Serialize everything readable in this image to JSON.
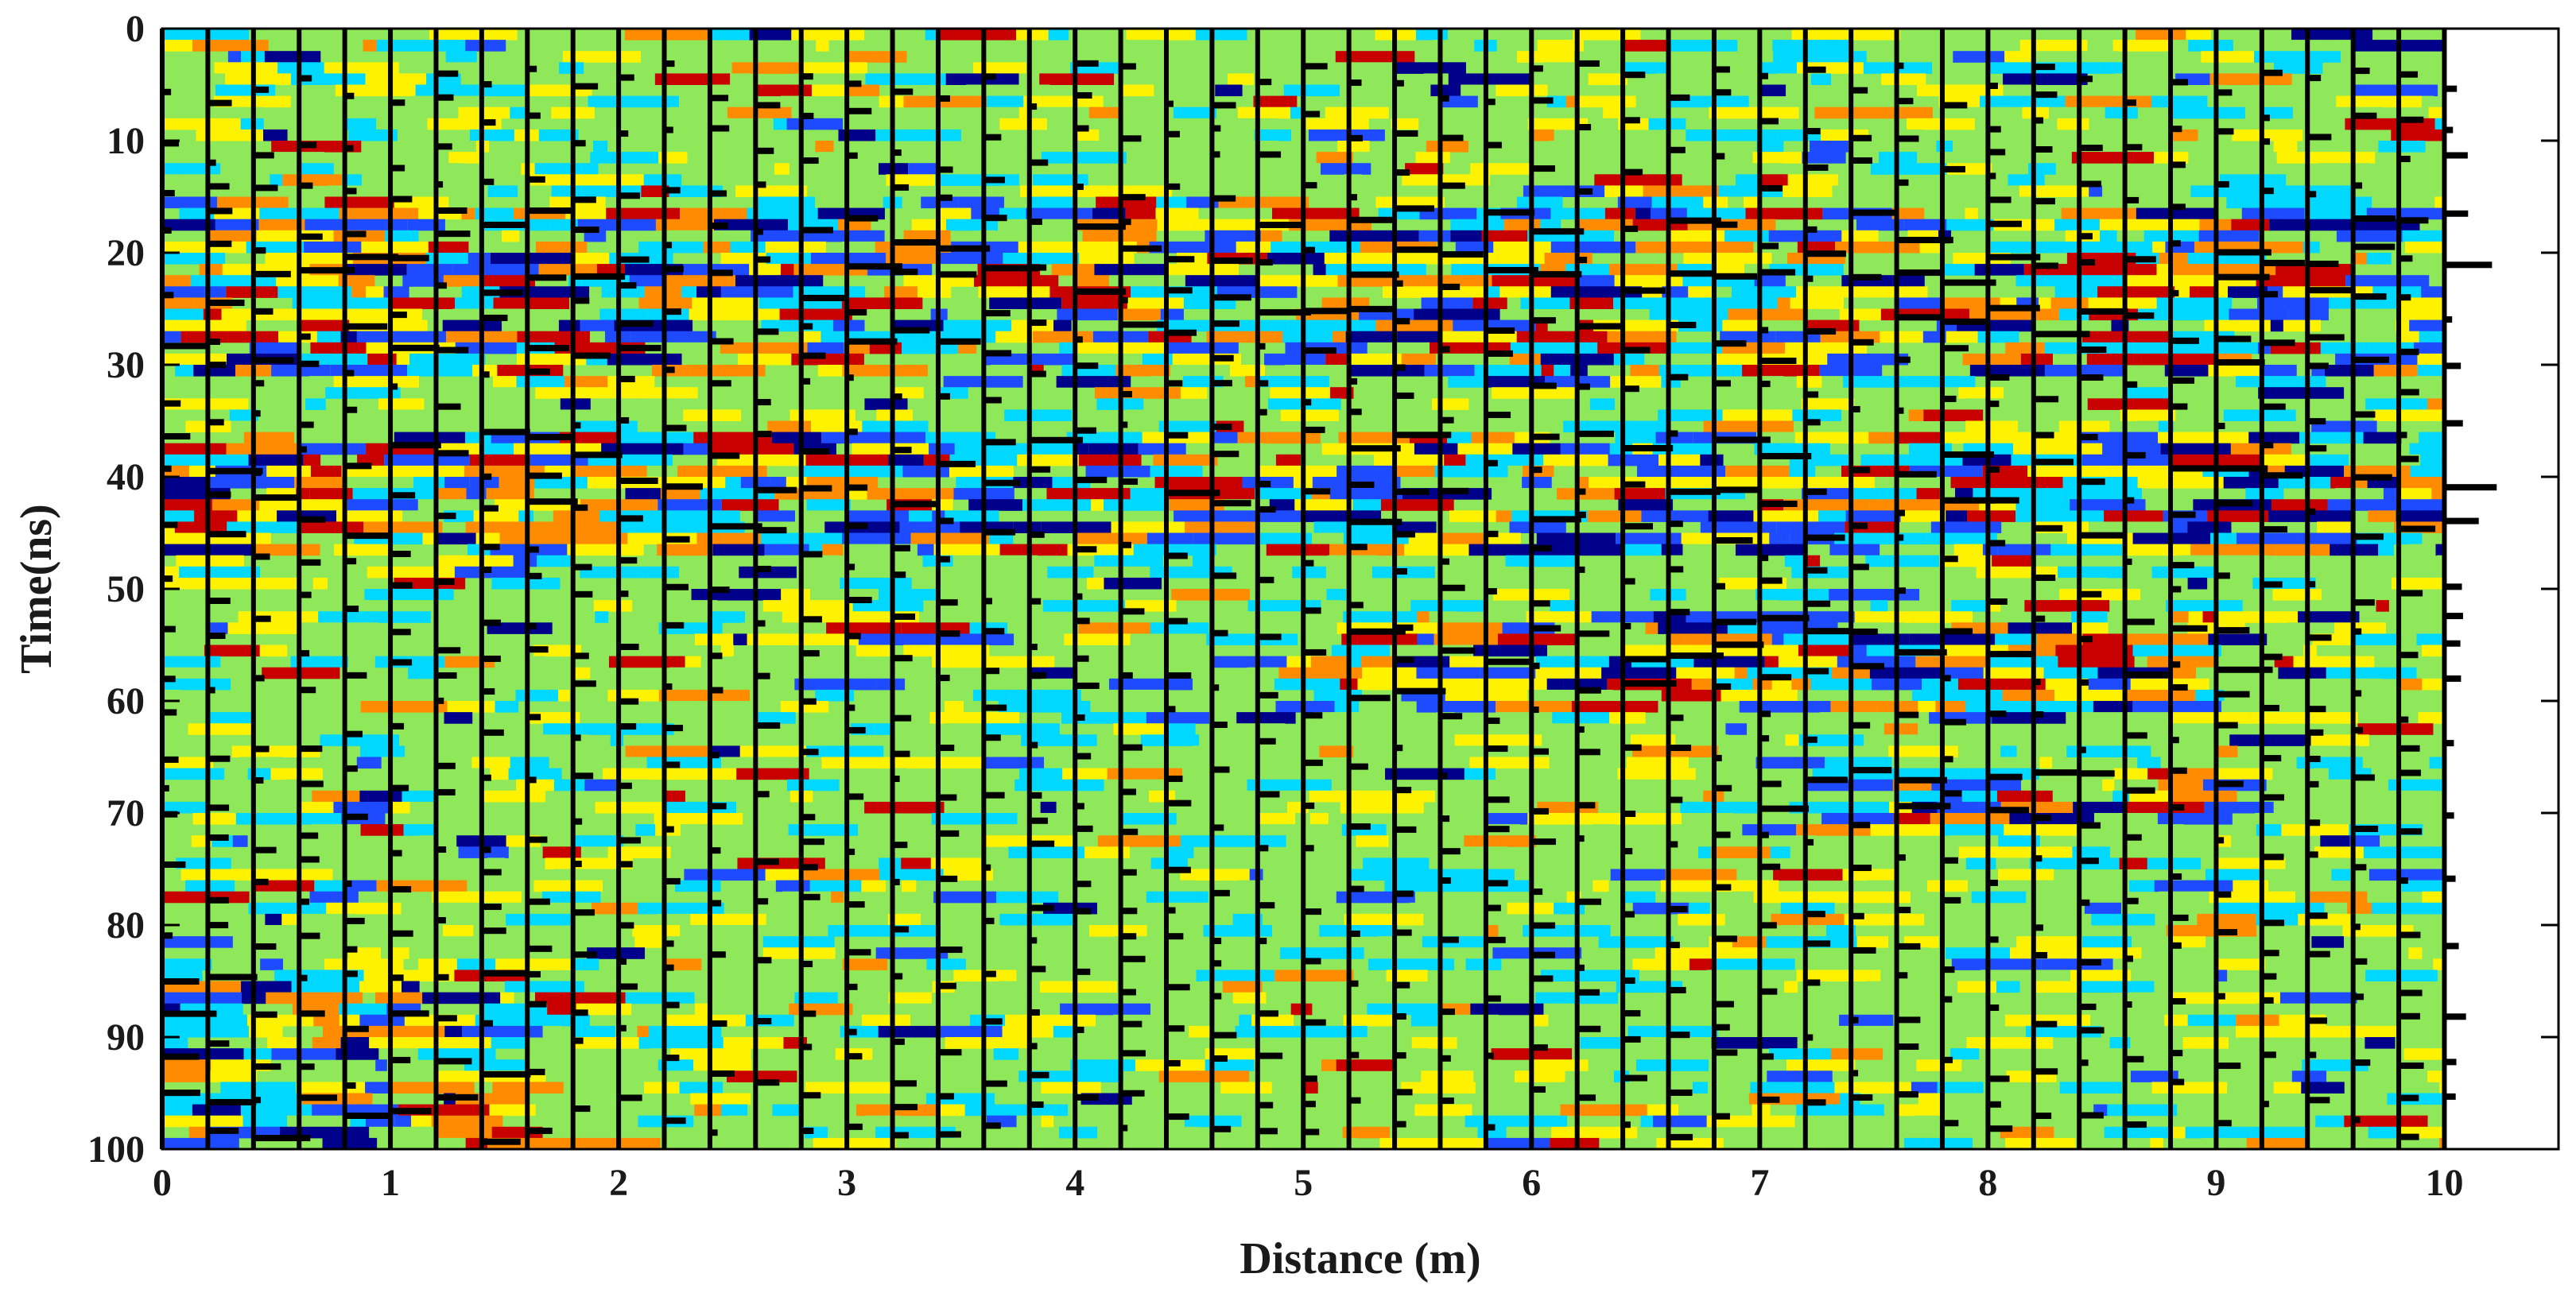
{
  "chart_data": {
    "type": "heatmap",
    "title": "",
    "xlabel": "Distance (m)",
    "ylabel": "Time(ns)",
    "xlim": [
      0,
      10.5
    ],
    "ylim": [
      0,
      100
    ],
    "y_reversed": true,
    "x_ticks": [
      "0",
      "1",
      "2",
      "3",
      "4",
      "5",
      "6",
      "7",
      "8",
      "9",
      "10"
    ],
    "y_ticks": [
      "0",
      "10",
      "20",
      "30",
      "40",
      "50",
      "60",
      "70",
      "80",
      "90",
      "100"
    ],
    "image_extent_x": [
      0,
      10
    ],
    "trace_spacing_m": 0.2,
    "trace_count": 51,
    "background_color": "#8fe85a",
    "colormap": [
      "#00008b",
      "#1e4bff",
      "#00d8ff",
      "#8fe85a",
      "#fff200",
      "#ff8c00",
      "#c80000"
    ],
    "trace_color": "#000000",
    "reflector_bands": [
      {
        "time_start": 16,
        "time_end": 30,
        "x_start": 0,
        "x_end": 10
      },
      {
        "time_start": 36,
        "time_end": 46,
        "x_start": 0,
        "x_end": 10
      },
      {
        "time_start": 52,
        "time_end": 60,
        "x_start": 5,
        "x_end": 9
      },
      {
        "time_start": 66,
        "time_end": 70,
        "x_start": 7,
        "x_end": 9
      },
      {
        "time_start": 84,
        "time_end": 100,
        "x_start": 0,
        "x_end": 1.5
      }
    ],
    "grid": false,
    "legend": "none"
  }
}
